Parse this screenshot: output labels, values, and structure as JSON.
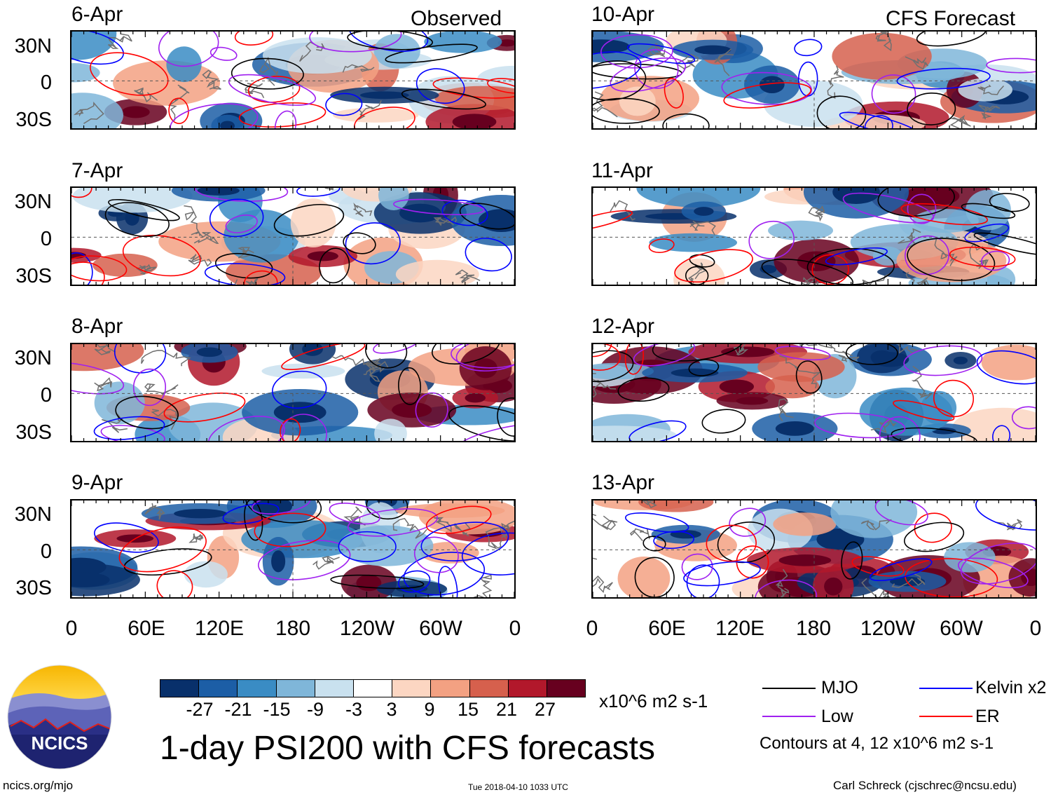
{
  "header": {
    "observed": "Observed",
    "forecast": "CFS Forecast"
  },
  "panels": [
    {
      "date": "6-Apr",
      "column": "observed"
    },
    {
      "date": "7-Apr",
      "column": "observed"
    },
    {
      "date": "8-Apr",
      "column": "observed"
    },
    {
      "date": "9-Apr",
      "column": "observed"
    },
    {
      "date": "10-Apr",
      "column": "forecast"
    },
    {
      "date": "11-Apr",
      "column": "forecast"
    },
    {
      "date": "12-Apr",
      "column": "forecast"
    },
    {
      "date": "13-Apr",
      "column": "forecast"
    }
  ],
  "axes": {
    "lat_labels": [
      "30N",
      "0",
      "30S"
    ],
    "lon_labels": [
      "0",
      "60E",
      "120E",
      "180",
      "120W",
      "60W",
      "0"
    ]
  },
  "colorbar": {
    "colors": [
      "#08306b",
      "#1c5ea6",
      "#3a8cc4",
      "#7fb6d9",
      "#c9e1ef",
      "#ffffff",
      "#fcd6c2",
      "#f3a182",
      "#d6604d",
      "#b2182b",
      "#67001f"
    ],
    "labels": [
      "-27",
      "-21",
      "-15",
      "-9",
      "-3",
      "3",
      "9",
      "15",
      "21",
      "27"
    ],
    "units": "x10^6 m2 s-1"
  },
  "legend": {
    "items": [
      {
        "label": "MJO",
        "color": "#000000"
      },
      {
        "label": "Kelvin x2",
        "color": "#0000ff"
      },
      {
        "label": "Low",
        "color": "#a020f0"
      },
      {
        "label": "ER",
        "color": "#ff0000"
      }
    ],
    "contours_note": "Contours at 4, 12 x10^6 m2 s-1"
  },
  "footer": {
    "title": "1-day PSI200 with CFS forecasts",
    "site": "ncics.org/mjo",
    "timestamp": "Tue 2018-04-10 1033 UTC",
    "author": "Carl Schreck (cjschrec@ncsu.edu)",
    "logo_text": "NCICS"
  }
}
